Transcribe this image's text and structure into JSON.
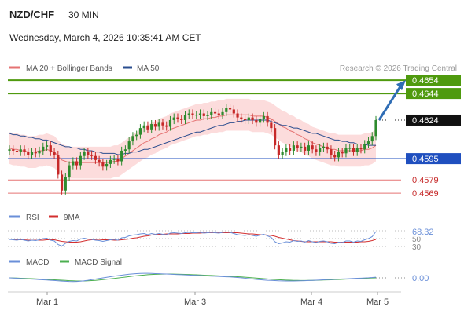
{
  "header": {
    "symbol": "NZD/CHF",
    "interval": "30 MIN",
    "datetime": "Wednesday, March 4, 2026 10:35:41 AM CET"
  },
  "legend": {
    "ma20_label": "MA 20 + Bollinger Bands",
    "ma50_label": "MA 50",
    "credit": "Research © 2026 Trading Central"
  },
  "colors": {
    "candle_up": "#2e8b2e",
    "candle_down": "#c62828",
    "band_fill": "#fbd3d3",
    "ma20": "#e57373",
    "ma50": "#2a4d8f",
    "green_level": "#4f9a0e",
    "blue_level": "#1f4fbf",
    "red_level": "#e57373",
    "rsi": "#6a8fd8",
    "rsi_ma": "#d32f2f",
    "macd": "#6a8fd8",
    "macd_signal": "#4caf50",
    "arrow": "#2f6db5"
  },
  "chart_data": [
    {
      "type": "candlestick",
      "title": "NZD/CHF",
      "ylim": [
        0.4562,
        0.466
      ],
      "x_ticks": [
        "Mar 1",
        "Mar 3",
        "Mar 4",
        "Mar 5"
      ],
      "current_price": 0.4624,
      "levels": [
        {
          "value": 0.4654,
          "label": "0.4654",
          "kind": "resistance"
        },
        {
          "value": 0.4644,
          "label": "0.4644",
          "kind": "resistance"
        },
        {
          "value": 0.4595,
          "label": "0.4595",
          "kind": "pivot"
        },
        {
          "value": 0.4579,
          "label": "0.4579",
          "kind": "support"
        },
        {
          "value": 0.4569,
          "label": "0.4569",
          "kind": "support"
        }
      ],
      "closes": [
        0.4602,
        0.4601,
        0.46,
        0.4602,
        0.46,
        0.4598,
        0.46,
        0.4599,
        0.4601,
        0.4604,
        0.4605,
        0.46,
        0.4598,
        0.4583,
        0.4571,
        0.4581,
        0.459,
        0.4593,
        0.459,
        0.4597,
        0.46,
        0.4598,
        0.4597,
        0.4594,
        0.4592,
        0.4589,
        0.4591,
        0.4594,
        0.4595,
        0.4593,
        0.4601,
        0.4602,
        0.4608,
        0.4612,
        0.4613,
        0.4618,
        0.462,
        0.4617,
        0.4621,
        0.4619,
        0.4622,
        0.462,
        0.4619,
        0.4624,
        0.4626,
        0.4625,
        0.4624,
        0.4628,
        0.4629,
        0.4628,
        0.4628,
        0.4629,
        0.4627,
        0.4628,
        0.463,
        0.4629,
        0.4628,
        0.463,
        0.4633,
        0.4632,
        0.4629,
        0.4626,
        0.4625,
        0.4624,
        0.4626,
        0.4624,
        0.4622,
        0.4625,
        0.4627,
        0.4622,
        0.4618,
        0.4605,
        0.4598,
        0.46,
        0.4603,
        0.4601,
        0.4605,
        0.4603,
        0.4604,
        0.4601,
        0.4605,
        0.4602,
        0.46,
        0.4603,
        0.4604,
        0.4602,
        0.4598,
        0.4596,
        0.46,
        0.4599,
        0.4603,
        0.4603,
        0.46,
        0.4603,
        0.4602,
        0.4606,
        0.4608,
        0.4612,
        0.4624
      ],
      "ma20": [
        0.4603,
        0.4602,
        0.4602,
        0.4601,
        0.4601,
        0.46,
        0.46,
        0.46,
        0.4601,
        0.4601,
        0.4602,
        0.4601,
        0.46,
        0.4597,
        0.4594,
        0.4593,
        0.4592,
        0.4592,
        0.4592,
        0.4592,
        0.4592,
        0.4592,
        0.4592,
        0.4592,
        0.4592,
        0.4592,
        0.4592,
        0.4592,
        0.4593,
        0.4593,
        0.4595,
        0.4597,
        0.4599,
        0.4601,
        0.4603,
        0.4605,
        0.4607,
        0.4608,
        0.461,
        0.4611,
        0.4613,
        0.4614,
        0.4615,
        0.4617,
        0.4618,
        0.4619,
        0.462,
        0.4621,
        0.4622,
        0.4623,
        0.4624,
        0.4624,
        0.4625,
        0.4625,
        0.4626,
        0.4626,
        0.4627,
        0.4627,
        0.4628,
        0.4628,
        0.4628,
        0.4628,
        0.4628,
        0.4628,
        0.4628,
        0.4627,
        0.4627,
        0.4627,
        0.4627,
        0.4626,
        0.4625,
        0.4623,
        0.4621,
        0.4619,
        0.4618,
        0.4616,
        0.4615,
        0.4613,
        0.4612,
        0.461,
        0.4609,
        0.4607,
        0.4606,
        0.4605,
        0.4604,
        0.4603,
        0.4602,
        0.4602,
        0.4601,
        0.4601,
        0.4601,
        0.4601,
        0.4601,
        0.4601,
        0.4601,
        0.4602,
        0.4602,
        0.4603,
        0.4605
      ],
      "ma50": [
        0.4614,
        0.4613,
        0.4613,
        0.4612,
        0.4612,
        0.4611,
        0.4611,
        0.461,
        0.461,
        0.4609,
        0.4609,
        0.4608,
        0.4607,
        0.4606,
        0.4605,
        0.4604,
        0.4604,
        0.4603,
        0.4603,
        0.4602,
        0.4602,
        0.4601,
        0.4601,
        0.46,
        0.46,
        0.4599,
        0.4599,
        0.4599,
        0.4599,
        0.4598,
        0.4598,
        0.4599,
        0.4599,
        0.46,
        0.46,
        0.4601,
        0.4602,
        0.4602,
        0.4603,
        0.4604,
        0.4605,
        0.4606,
        0.4607,
        0.4608,
        0.4609,
        0.461,
        0.4611,
        0.4612,
        0.4613,
        0.4614,
        0.4615,
        0.4615,
        0.4616,
        0.4617,
        0.4618,
        0.4619,
        0.462,
        0.462,
        0.4621,
        0.4622,
        0.4622,
        0.4623,
        0.4623,
        0.4624,
        0.4624,
        0.4624,
        0.4624,
        0.4624,
        0.4624,
        0.4624,
        0.4623,
        0.4622,
        0.4621,
        0.462,
        0.462,
        0.4619,
        0.4618,
        0.4618,
        0.4617,
        0.4616,
        0.4615,
        0.4614,
        0.4614,
        0.4613,
        0.4612,
        0.4611,
        0.461,
        0.4609,
        0.4609,
        0.4608,
        0.4608,
        0.4607,
        0.4607,
        0.4606,
        0.4606,
        0.4606,
        0.4605,
        0.4605,
        0.4605
      ],
      "bb_width": 0.0012,
      "forecast_target": 0.4654
    },
    {
      "type": "line",
      "title": "RSI",
      "legend": [
        "RSI",
        "9MA"
      ],
      "ylim": [
        30,
        70
      ],
      "ticks": [
        30,
        50
      ],
      "current_value": 68.32,
      "current_label": "68.32",
      "rsi": [
        48,
        47,
        46,
        48,
        46,
        44,
        46,
        45,
        47,
        50,
        51,
        46,
        44,
        35,
        31,
        38,
        43,
        45,
        44,
        49,
        51,
        49,
        48,
        46,
        45,
        43,
        45,
        47,
        48,
        46,
        52,
        53,
        57,
        59,
        60,
        62,
        63,
        60,
        63,
        61,
        63,
        61,
        60,
        64,
        65,
        64,
        63,
        65,
        66,
        65,
        65,
        66,
        64,
        65,
        66,
        65,
        64,
        66,
        67,
        66,
        63,
        60,
        59,
        58,
        60,
        58,
        56,
        59,
        61,
        57,
        53,
        42,
        37,
        39,
        42,
        41,
        45,
        43,
        44,
        41,
        45,
        42,
        40,
        43,
        44,
        42,
        38,
        37,
        41,
        40,
        44,
        44,
        41,
        44,
        43,
        47,
        50,
        55,
        68
      ],
      "ma9": [
        48,
        48,
        47,
        47,
        47,
        46,
        46,
        46,
        46,
        46,
        47,
        47,
        47,
        45,
        43,
        42,
        41,
        41,
        41,
        42,
        44,
        46,
        47,
        48,
        48,
        47,
        47,
        47,
        46,
        46,
        47,
        48,
        49,
        51,
        52,
        54,
        56,
        57,
        59,
        60,
        61,
        61,
        62,
        62,
        62,
        62,
        63,
        63,
        63,
        64,
        64,
        64,
        65,
        65,
        65,
        65,
        65,
        65,
        65,
        65,
        65,
        65,
        64,
        63,
        62,
        62,
        61,
        60,
        60,
        59,
        58,
        56,
        53,
        51,
        49,
        47,
        45,
        44,
        43,
        42,
        42,
        42,
        42,
        42,
        42,
        42,
        42,
        41,
        41,
        41,
        41,
        41,
        41,
        41,
        42,
        42,
        43,
        45,
        48
      ]
    },
    {
      "type": "line",
      "title": "MACD",
      "legend": [
        "MACD",
        "MACD Signal"
      ],
      "current_label": "0.00",
      "macd": [
        0,
        -0.5,
        -1,
        -1.5,
        -2,
        -2.5,
        -3,
        -3.5,
        -4,
        -4.5,
        -5,
        -5.6,
        -6.2,
        -6.8,
        -7.4,
        -8,
        -8.4,
        -8.6,
        -8.4,
        -7.8,
        -6.8,
        -5.6,
        -4.2,
        -2.8,
        -1.4,
        0,
        1.4,
        2.8,
        4,
        5.2,
        6.4,
        7.6,
        8.6,
        9.4,
        10,
        10.4,
        10.6,
        10.6,
        10.4,
        10.1,
        9.8,
        9.4,
        9,
        8.6,
        8.2,
        7.8,
        7.4,
        7,
        6.6,
        6.2,
        5.8,
        5.4,
        5,
        4.6,
        4.2,
        3.8,
        3.4,
        3,
        2.6,
        2.2,
        1.6,
        1,
        0.2,
        -0.8,
        -1.8,
        -2.8,
        -3.6,
        -4.4,
        -5,
        -5.6,
        -6,
        -6.4,
        -6.8,
        -7,
        -7.2,
        -7.2,
        -7.2,
        -7,
        -6.8,
        -6.5,
        -6.2,
        -5.8,
        -5.4,
        -5,
        -4.6,
        -4.2,
        -3.8,
        -3.4,
        -3,
        -2.6,
        -2.2,
        -1.8,
        -1.4,
        -1,
        -0.6,
        -0.2,
        0.2,
        0.8,
        1.6
      ],
      "signal": [
        0,
        -0.2,
        -0.5,
        -0.8,
        -1.1,
        -1.5,
        -1.9,
        -2.3,
        -2.7,
        -3.1,
        -3.5,
        -4,
        -4.5,
        -5,
        -5.5,
        -6,
        -6.5,
        -6.9,
        -7.2,
        -7.3,
        -7.2,
        -6.9,
        -6.4,
        -5.8,
        -5,
        -4.2,
        -3.3,
        -2.3,
        -1.3,
        -0.3,
        0.8,
        1.9,
        3,
        4,
        5,
        5.9,
        6.7,
        7.4,
        8,
        8.4,
        8.7,
        8.9,
        9,
        9,
        8.9,
        8.7,
        8.5,
        8.2,
        7.9,
        7.6,
        7.2,
        6.8,
        6.4,
        6,
        5.6,
        5.2,
        4.8,
        4.4,
        4,
        3.6,
        3.2,
        2.7,
        2.2,
        1.6,
        0.9,
        0.2,
        -0.5,
        -1.2,
        -1.9,
        -2.6,
        -3.2,
        -3.8,
        -4.3,
        -4.8,
        -5.2,
        -5.5,
        -5.8,
        -6,
        -6.1,
        -6.1,
        -6,
        -5.9,
        -5.7,
        -5.4,
        -5.1,
        -4.8,
        -4.5,
        -4.1,
        -3.8,
        -3.4,
        -3,
        -2.7,
        -2.3,
        -1.9,
        -1.5,
        -1.1,
        -0.7,
        -0.3,
        0.1
      ]
    }
  ]
}
